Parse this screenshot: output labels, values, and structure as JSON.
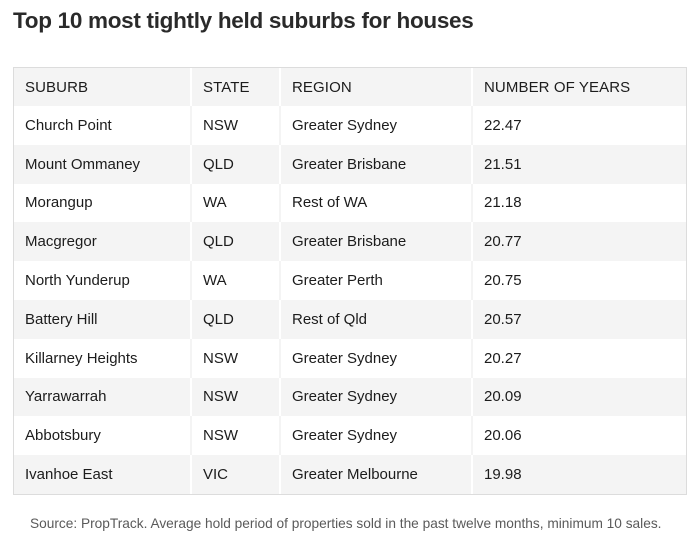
{
  "title": "Top 10 most tightly held suburbs for houses",
  "table": {
    "headers": [
      "SUBURB",
      "STATE",
      "REGION",
      "NUMBER OF YEARS"
    ],
    "rows": [
      [
        "Church Point",
        "NSW",
        "Greater Sydney",
        "22.47"
      ],
      [
        "Mount Ommaney",
        "QLD",
        "Greater Brisbane",
        "21.51"
      ],
      [
        "Morangup",
        "WA",
        "Rest of WA",
        "21.18"
      ],
      [
        "Macgregor",
        "QLD",
        "Greater Brisbane",
        "20.77"
      ],
      [
        "North Yunderup",
        "WA",
        "Greater Perth",
        "20.75"
      ],
      [
        "Battery Hill",
        "QLD",
        "Rest of Qld",
        "20.57"
      ],
      [
        "Killarney Heights",
        "NSW",
        "Greater Sydney",
        "20.27"
      ],
      [
        "Yarrawarrah",
        "NSW",
        "Greater Sydney",
        "20.09"
      ],
      [
        "Abbotsbury",
        "NSW",
        "Greater Sydney",
        "20.06"
      ],
      [
        "Ivanhoe East",
        "VIC",
        "Greater Melbourne",
        "19.98"
      ]
    ]
  },
  "source": "Source: PropTrack. Average hold period of properties sold in the past twelve months, minimum 10 sales."
}
